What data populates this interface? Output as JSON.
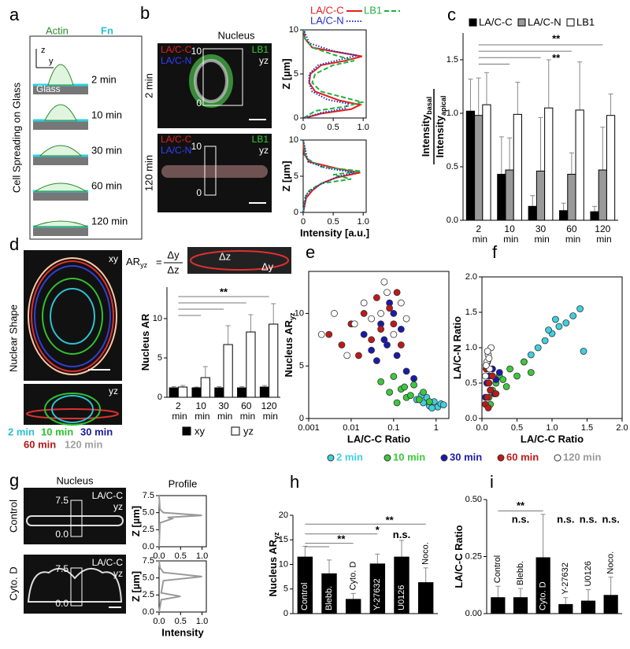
{
  "letters": [
    "a",
    "b",
    "c",
    "d",
    "e",
    "f",
    "g",
    "h",
    "i"
  ],
  "panels": {
    "a": {
      "actin": "Actin",
      "fn": "Fn",
      "z": "z",
      "y": "y",
      "glass": "Glass",
      "side": "Cell Spreading on Glass",
      "times": [
        "2 min",
        "10 min",
        "30 min",
        "60 min",
        "120 min"
      ]
    },
    "b": {
      "title": "Nucleus",
      "rows": [
        "2 min",
        "120 min"
      ],
      "lac": "LA/C-C",
      "lan": "LA/C-N",
      "lb1": "LB1",
      "view": "yz",
      "top": "10",
      "bottom": "0"
    },
    "d": {
      "side": "Nuclear Shape",
      "xy": "xy",
      "yz": "yz",
      "ar": "AR",
      "ar_sub": "yz",
      "eq": "=",
      "num": "Δy",
      "den": "Δz",
      "legend": [
        {
          "text": "2 min",
          "color": "#2bbfd6"
        },
        {
          "text": "10 min",
          "color": "#2fc02f"
        },
        {
          "text": "30 min",
          "color": "#1a1a9a"
        },
        {
          "text": "60 min",
          "color": "#b01818"
        },
        {
          "text": "120 min",
          "color": "#a0a0a0"
        }
      ]
    },
    "g": {
      "title": "Nucleus",
      "rows": [
        "Control",
        "Cyto. D"
      ],
      "stain": "LA/C-C",
      "view": "yz",
      "top": "7.5",
      "bottom": "0.0"
    }
  },
  "chart_data": [
    {
      "type": "line",
      "ylabel": "Z [µm]",
      "xlim": [
        0,
        1.05
      ],
      "ylim": [
        0,
        10
      ],
      "xticks": [
        0,
        {
          "value": 0.5,
          "label": "0.5"
        },
        {
          "value": 1,
          "label": "1.0"
        }
      ],
      "yticks": [
        0,
        5,
        10
      ],
      "series": [
        {
          "name": "LA/C-C",
          "color": "#e0201e",
          "style": "solid",
          "x": [
            0.02,
            0.3,
            0.8,
            0.95,
            0.6,
            0.2,
            0.1,
            0.12,
            0.3,
            0.7,
            0.98,
            0.55,
            0.15,
            0.03,
            0.01
          ],
          "values": [
            0,
            0.5,
            1,
            1.5,
            2,
            3,
            4,
            5,
            6,
            6.5,
            7,
            7.5,
            8,
            9,
            10
          ]
        },
        {
          "name": "LB1",
          "color": "#20b040",
          "style": "dashed",
          "x": [
            0.01,
            0.2,
            0.7,
            0.98,
            0.7,
            0.3,
            0.15,
            0.2,
            0.5,
            0.85,
            0.5,
            0.15,
            0.03,
            0.01
          ],
          "values": [
            0,
            0.8,
            1.3,
            1.8,
            2.3,
            3,
            4,
            5,
            6,
            6.5,
            7.2,
            8,
            9,
            10
          ]
        },
        {
          "name": "LA/C-N",
          "color": "#2030c0",
          "style": "dotted",
          "x": [
            0.02,
            0.3,
            0.7,
            0.75,
            0.4,
            0.15,
            0.1,
            0.1,
            0.25,
            0.6,
            0.9,
            0.5,
            0.1,
            0.01
          ],
          "values": [
            0,
            0.6,
            1.1,
            1.6,
            2.1,
            3,
            4,
            5,
            6,
            6.6,
            7.1,
            7.6,
            8.5,
            10
          ]
        }
      ]
    },
    {
      "type": "line",
      "xlabel": "Intensity [a.u.]",
      "ylabel": "Z [µm]",
      "xlim": [
        0,
        1.05
      ],
      "ylim": [
        0,
        10
      ],
      "xticks": [
        0,
        {
          "value": 0.5,
          "label": "0.5"
        },
        {
          "value": 1,
          "label": "1.0"
        }
      ],
      "yticks": [
        0,
        5,
        10
      ],
      "series": [
        {
          "color": "#e0201e",
          "style": "solid",
          "x": [
            0,
            0.05,
            0.15,
            0.3,
            0.55,
            0.95,
            0.6,
            0.1,
            0.02,
            0
          ],
          "values": [
            0,
            2,
            3,
            4,
            4.8,
            5.5,
            6,
            7,
            8,
            10
          ]
        },
        {
          "color": "#20b040",
          "style": "dashed",
          "x": [
            0,
            0.03,
            0.1,
            0.3,
            0.8,
            0.5,
            0.95,
            0.3,
            0.05,
            0
          ],
          "values": [
            0,
            2,
            3,
            4,
            4.6,
            5.2,
            5.7,
            6.3,
            7.5,
            10
          ]
        },
        {
          "color": "#2030c0",
          "style": "dotted",
          "x": [
            0,
            0.05,
            0.2,
            0.4,
            0.6,
            0.85,
            0.4,
            0.08,
            0
          ],
          "values": [
            0,
            2.5,
            3.5,
            4.3,
            5,
            5.5,
            6.1,
            7,
            10
          ]
        }
      ]
    },
    {
      "type": "bar",
      "categories": [
        "2 min",
        "10 min",
        "30 min",
        "60 min",
        "120 min"
      ],
      "ylabel_num": "Intensity",
      "ylabel_num_sub": "basal",
      "ylabel_den": "Intensity",
      "ylabel_den_sub": "apical",
      "ylim": [
        0,
        1.75
      ],
      "yticks": [
        {
          "value": 0,
          "label": "0.0"
        },
        {
          "value": 0.5,
          "label": "0.5"
        },
        {
          "value": 1,
          "label": "1.0"
        },
        {
          "value": 1.5,
          "label": "1.5"
        }
      ],
      "annotations": [
        "**",
        "**"
      ],
      "series": [
        {
          "name": "LA/C-C",
          "color": "#000000",
          "values": [
            1.02,
            0.43,
            0.13,
            0.09,
            0.08
          ],
          "errors": [
            0.3,
            0.35,
            0.1,
            0.07,
            0.05
          ]
        },
        {
          "name": "LA/C-N",
          "color": "#999999",
          "values": [
            0.98,
            0.47,
            0.46,
            0.43,
            0.47
          ],
          "errors": [
            0.35,
            0.3,
            0.5,
            0.2,
            0.4
          ]
        },
        {
          "name": "LB1",
          "color": "#ffffff",
          "values": [
            1.08,
            0.99,
            1.05,
            1.03,
            0.98
          ],
          "errors": [
            0.3,
            0.3,
            0.45,
            0.45,
            0.2
          ]
        }
      ]
    },
    {
      "type": "bar",
      "categories": [
        "2 min",
        "10 min",
        "30 min",
        "60 min",
        "120 min"
      ],
      "ylabel": "Nucleus AR",
      "ylim": [
        0,
        14
      ],
      "yticks": [
        0,
        5,
        10
      ],
      "annotations": [
        "**"
      ],
      "series": [
        {
          "name": "xy",
          "color": "#000000",
          "values": [
            1.2,
            1.2,
            1.2,
            1.2,
            1.3
          ],
          "errors": [
            0.15,
            0.1,
            0.15,
            0.15,
            0.2
          ]
        },
        {
          "name": "yz",
          "color": "#ffffff",
          "values": [
            1.3,
            2.5,
            6.7,
            8.3,
            9.3
          ],
          "errors": [
            0.2,
            1.4,
            2.4,
            2.2,
            2.6
          ]
        }
      ]
    },
    {
      "type": "scatter",
      "xlog": true,
      "xlabel": "LA/C-C Ratio",
      "ylabel": "Nucleus AR",
      "ylabel_sub": "yz",
      "xlim": [
        0.001,
        2
      ],
      "ylim": [
        0,
        14
      ],
      "xticks": [
        0.001,
        0.01,
        0.1,
        1
      ],
      "yticks": [
        0,
        5,
        10
      ],
      "series": [
        {
          "name": "2 min",
          "color": "#3fd0e0",
          "x": [
            0.35,
            0.5,
            0.7,
            0.9,
            1.1,
            1.3,
            0.6,
            0.8,
            1.5,
            0.45
          ],
          "values": [
            1.8,
            1.5,
            1.2,
            1.6,
            1.1,
            1.4,
            2.0,
            1.0,
            1.3,
            2.2
          ]
        },
        {
          "name": "10 min",
          "color": "#3cc83c",
          "x": [
            0.05,
            0.08,
            0.1,
            0.15,
            0.2,
            0.3,
            0.4,
            0.5,
            0.12,
            0.25,
            0.7,
            0.18
          ],
          "values": [
            3.5,
            2.5,
            4.0,
            2.8,
            2.0,
            3.2,
            1.8,
            2.5,
            1.5,
            2.2,
            1.6,
            3.0
          ]
        },
        {
          "name": "30 min",
          "color": "#1a1aaa",
          "x": [
            0.02,
            0.03,
            0.05,
            0.07,
            0.1,
            0.12,
            0.15,
            0.2,
            0.04,
            0.08,
            0.3,
            0.06
          ],
          "values": [
            8,
            6.5,
            9,
            7,
            10,
            6,
            8.5,
            4.5,
            5.5,
            11,
            3.8,
            7.5
          ]
        },
        {
          "name": "60 min",
          "color": "#c01818",
          "x": [
            0.003,
            0.006,
            0.01,
            0.02,
            0.03,
            0.05,
            0.08,
            0.1,
            0.15,
            0.04,
            0.015,
            0.12
          ],
          "values": [
            8,
            7,
            9,
            10,
            7.5,
            8.5,
            10.5,
            9,
            7,
            11.5,
            6,
            12
          ]
        },
        {
          "name": "120 min",
          "color": "#ffffff",
          "x": [
            0.002,
            0.004,
            0.008,
            0.012,
            0.02,
            0.03,
            0.05,
            0.07,
            0.1,
            0.15,
            0.2,
            0.06
          ],
          "values": [
            8,
            10,
            6,
            9,
            11,
            9.5,
            10,
            12,
            8,
            11,
            9.5,
            13
          ]
        }
      ]
    },
    {
      "type": "scatter",
      "xlabel": "LA/C-C Ratio",
      "ylabel": "LA/C-N Ratio",
      "xlim": [
        0,
        2
      ],
      "ylim": [
        0,
        2
      ],
      "xticks": [
        {
          "value": 0,
          "label": "0.0"
        },
        {
          "value": 0.5,
          "label": "0.5"
        },
        {
          "value": 1,
          "label": "1.0"
        },
        {
          "value": 1.5,
          "label": "1.5"
        },
        {
          "value": 2,
          "label": "2.0"
        }
      ],
      "yticks": [
        {
          "value": 0,
          "label": "0.0"
        },
        {
          "value": 0.5,
          "label": "0.5"
        },
        {
          "value": 1,
          "label": "1.0"
        },
        {
          "value": 1.5,
          "label": "1.5"
        },
        {
          "value": 2,
          "label": "2.0"
        }
      ],
      "series": [
        {
          "color": "#3fd0e0",
          "x": [
            0.6,
            0.7,
            0.8,
            0.9,
            1.0,
            1.1,
            1.2,
            1.3,
            1.4,
            1.45,
            1.05,
            0.95
          ],
          "values": [
            0.8,
            0.9,
            1.0,
            1.1,
            1.2,
            1.3,
            1.35,
            1.45,
            1.55,
            0.95,
            1.4,
            1.25
          ]
        },
        {
          "color": "#3cc83c",
          "x": [
            0.1,
            0.15,
            0.2,
            0.25,
            0.3,
            0.4,
            0.5,
            0.6,
            0.12,
            0.35,
            0.7,
            0.18
          ],
          "values": [
            0.3,
            0.4,
            0.5,
            0.6,
            0.55,
            0.7,
            0.6,
            0.8,
            0.2,
            0.45,
            0.65,
            0.35
          ]
        },
        {
          "color": "#1a1aaa",
          "x": [
            0.05,
            0.07,
            0.1,
            0.12,
            0.15,
            0.2,
            0.08,
            0.18,
            0.25,
            0.06
          ],
          "values": [
            0.3,
            0.5,
            0.6,
            0.4,
            0.7,
            0.55,
            0.8,
            0.35,
            0.65,
            0.75
          ]
        },
        {
          "color": "#c01818",
          "x": [
            0.05,
            0.08,
            0.1,
            0.12,
            0.15,
            0.2,
            0.06,
            0.09
          ],
          "values": [
            0.2,
            0.3,
            0.5,
            0.4,
            0.6,
            0.35,
            0.7,
            0.15
          ]
        },
        {
          "color": "#ffffff",
          "x": [
            0.05,
            0.07,
            0.09,
            0.11,
            0.13,
            0.08,
            0.06,
            0.1
          ],
          "values": [
            0.6,
            0.8,
            0.9,
            0.7,
            1.0,
            0.95,
            0.75,
            0.85
          ]
        }
      ]
    },
    {
      "type": "line",
      "title": "Profile",
      "ylabel": "Z [µm]",
      "xlim": [
        0,
        1.1
      ],
      "ylim": [
        0,
        7.5
      ],
      "xticks": [
        {
          "value": 0,
          "label": "0.0"
        },
        {
          "value": 0.5,
          "label": "0.5"
        },
        {
          "value": 1,
          "label": "1.0"
        }
      ],
      "yticks": [
        {
          "value": 0,
          "label": "0.0"
        },
        {
          "value": 2.5,
          "label": "2.5"
        },
        {
          "value": 5,
          "label": "5.0"
        },
        {
          "value": 7.5,
          "label": "7.5"
        }
      ],
      "series": [
        {
          "color": "#999999",
          "style": "solid",
          "x": [
            0,
            0.02,
            0.3,
            0.2,
            1.0,
            0.1,
            0.02,
            0
          ],
          "values": [
            0,
            3.5,
            4.1,
            4.3,
            4.6,
            5.0,
            5.5,
            7.5
          ]
        }
      ]
    },
    {
      "type": "line",
      "xlabel": "Intensity",
      "ylabel": "Z [µm]",
      "xlim": [
        0,
        1.1
      ],
      "ylim": [
        0,
        7.5
      ],
      "xticks": [
        {
          "value": 0,
          "label": "0.0"
        },
        {
          "value": 0.5,
          "label": "0.5"
        },
        {
          "value": 1,
          "label": "1.0"
        }
      ],
      "yticks": [
        {
          "value": 0,
          "label": "0.0"
        },
        {
          "value": 2.5,
          "label": "2.5"
        },
        {
          "value": 5,
          "label": "5.0"
        },
        {
          "value": 7.5,
          "label": "7.5"
        }
      ],
      "series": [
        {
          "color": "#999999",
          "style": "solid",
          "x": [
            0,
            0.05,
            0.5,
            0.05,
            0.1,
            1.0,
            0.1,
            0.02,
            0
          ],
          "values": [
            0,
            1.8,
            2.3,
            2.8,
            4.6,
            5.2,
            5.8,
            6.5,
            7.5
          ]
        }
      ]
    },
    {
      "type": "bar",
      "categories": [
        "Control",
        "Blebb.",
        "Cyto. D",
        "Y-27632",
        "U0126",
        "Noco."
      ],
      "color": "#000000",
      "values": [
        11.5,
        8.1,
        2.9,
        10.1,
        11.5,
        6.3
      ],
      "errors": [
        2.2,
        2.8,
        1.2,
        2.0,
        3.4,
        3.0
      ],
      "ylabel": "Nucleus AR",
      "ylabel_sub": "yz",
      "ylim": [
        0,
        20
      ],
      "yticks": [
        0,
        5,
        10,
        15,
        20
      ],
      "annotations": [
        "**",
        "*",
        "**",
        "n.s."
      ]
    },
    {
      "type": "bar",
      "categories": [
        "Control",
        "Blebb.",
        "Cyto. D",
        "Y-27632",
        "U0126",
        "Noco."
      ],
      "color": "#000000",
      "values": [
        0.07,
        0.07,
        0.245,
        0.04,
        0.055,
        0.08
      ],
      "errors": [
        0.05,
        0.04,
        0.19,
        0.03,
        0.05,
        0.08
      ],
      "ylabel": "LA/C-C Ratio",
      "ylim": [
        0,
        0.5
      ],
      "yticks": [
        {
          "value": 0,
          "label": "0.00"
        },
        {
          "value": 0.25,
          "label": "0.25"
        },
        {
          "value": 0.5,
          "label": "0.50"
        }
      ],
      "annotations": [
        "**",
        "n.s.",
        "n.s.",
        "n.s.",
        "n.s."
      ]
    }
  ]
}
